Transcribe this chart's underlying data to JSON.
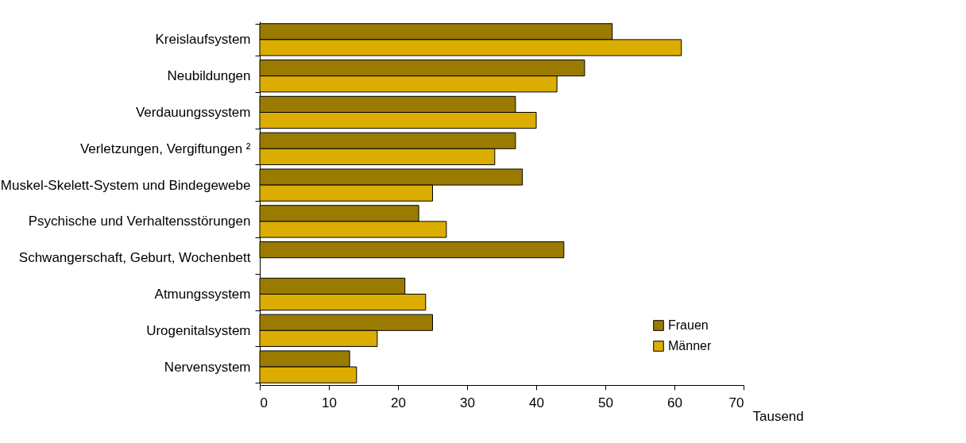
{
  "chart_data": {
    "type": "bar",
    "orientation": "horizontal",
    "xlabel": "Tausend",
    "categories": [
      "Kreislaufsystem",
      "Neubildungen",
      "Verdauungssystem",
      "Verletzungen, Vergiftungen ²",
      "Muskel-Skelett-System und Bindegewebe",
      "Psychische und Verhaltensstörungen",
      "Schwangerschaft, Geburt, Wochenbett",
      "Atmungssystem",
      "Urogenitalsystem",
      "Nervensystem"
    ],
    "series": [
      {
        "name": "Frauen",
        "color": "#9a7b00",
        "values": [
          51,
          47,
          37,
          37,
          38,
          23,
          44,
          21,
          25,
          13
        ]
      },
      {
        "name": "Männer",
        "color": "#dbad00",
        "values": [
          61,
          43,
          40,
          34,
          25,
          27,
          null,
          24,
          17,
          14
        ]
      }
    ],
    "xlim": [
      0,
      70
    ],
    "xticks": [
      0,
      10,
      20,
      30,
      40,
      50,
      60,
      70
    ],
    "grid": false,
    "legend": "bottom right"
  }
}
